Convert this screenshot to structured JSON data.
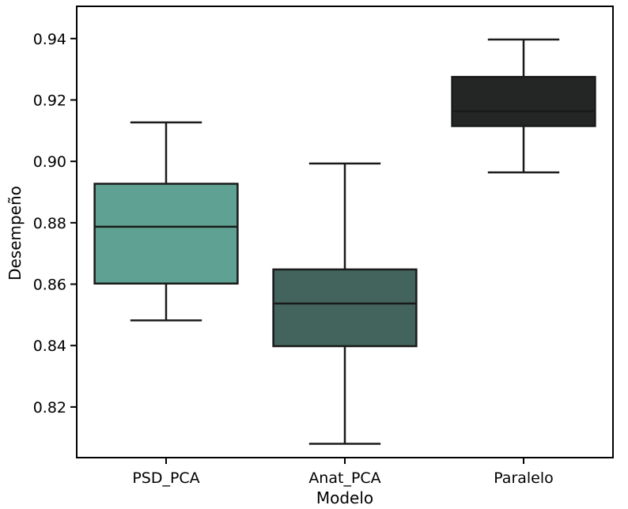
{
  "chart_data": {
    "type": "box",
    "title": "",
    "xlabel": "Modelo",
    "ylabel": "Desempeño",
    "ylim": [
      0.8035,
      0.9505
    ],
    "yticks": [
      0.82,
      0.84,
      0.86,
      0.88,
      0.9,
      0.92,
      0.94
    ],
    "ytick_labels": [
      "0.82",
      "0.84",
      "0.86",
      "0.88",
      "0.90",
      "0.92",
      "0.94"
    ],
    "categories": [
      "PSD_PCA",
      "Anat_PCA",
      "Paralelo"
    ],
    "boxes": [
      {
        "category": "PSD_PCA",
        "whisker_low": 0.8482,
        "q1": 0.8602,
        "median": 0.8787,
        "q3": 0.8927,
        "whisker_high": 0.9127,
        "color": "#5fa193"
      },
      {
        "category": "Anat_PCA",
        "whisker_low": 0.808,
        "q1": 0.8398,
        "median": 0.8537,
        "q3": 0.8648,
        "whisker_high": 0.8993,
        "color": "#43645c"
      },
      {
        "category": "Paralelo",
        "whisker_low": 0.8964,
        "q1": 0.9115,
        "median": 0.9163,
        "q3": 0.9275,
        "whisker_high": 0.9397,
        "color": "#232625"
      }
    ],
    "grid": false,
    "legend": "none"
  }
}
